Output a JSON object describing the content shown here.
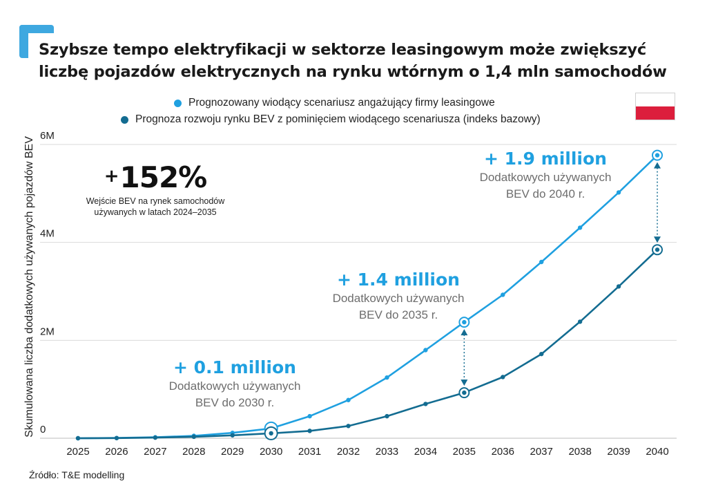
{
  "title": "Szybsze tempo elektryfikacji w sektorze leasingowym może zwiększyć liczbę pojazdów elektrycznych na rynku wtórnym o 1,4 mln samochodów",
  "colors": {
    "leasing": "#1fa0e0",
    "base": "#136c91",
    "accent": "#3ea8e0",
    "flag_red": "#dc1e3c"
  },
  "flag_icon": "poland-flag-icon",
  "big_stat": {
    "value": "152%",
    "plus": "+",
    "description": "Wejście BEV na rynek samochodów używanych w latach 2024–2035"
  },
  "annotations": [
    {
      "value": "+ 0.1 million",
      "line1": "Dodatkowych używanych",
      "line2": "BEV do 2030 r."
    },
    {
      "value": "+ 1.4 million",
      "line1": "Dodatkowych używanych",
      "line2": "BEV do 2035 r."
    },
    {
      "value": "+ 1.9 million",
      "line1": "Dodatkowych używanych",
      "line2": "BEV do 2040 r."
    }
  ],
  "source": "Źródło: T&E modelling",
  "chart_data": {
    "type": "line",
    "title": "",
    "ylabel": "Skumulowana liczba dodatkowych używanych pojazdów BEV",
    "xlabel": "",
    "x": [
      2025,
      2026,
      2027,
      2028,
      2029,
      2030,
      2031,
      2032,
      2033,
      2034,
      2035,
      2036,
      2037,
      2038,
      2039,
      2040
    ],
    "ylim": [
      0,
      6000000
    ],
    "yticks": [
      0,
      2000000,
      4000000,
      6000000
    ],
    "ytick_labels": [
      "0",
      "2M",
      "4M",
      "6M"
    ],
    "grid": true,
    "legend_position": "top",
    "series": [
      {
        "name": "Prognozowany wiodący scenariusz angażujący firmy leasingowe",
        "values": [
          0,
          5000,
          20000,
          50000,
          110000,
          200000,
          450000,
          780000,
          1240000,
          1800000,
          2370000,
          2930000,
          3600000,
          4300000,
          5020000,
          5780000
        ]
      },
      {
        "name": "Prognoza rozwoju rynku BEV z pominięciem wiodącego scenariusza (indeks bazowy)",
        "values": [
          0,
          3000,
          12000,
          30000,
          60000,
          100000,
          150000,
          250000,
          450000,
          700000,
          930000,
          1250000,
          1720000,
          2380000,
          3100000,
          3850000
        ]
      }
    ],
    "highlights": [
      2030,
      2035,
      2040
    ]
  }
}
